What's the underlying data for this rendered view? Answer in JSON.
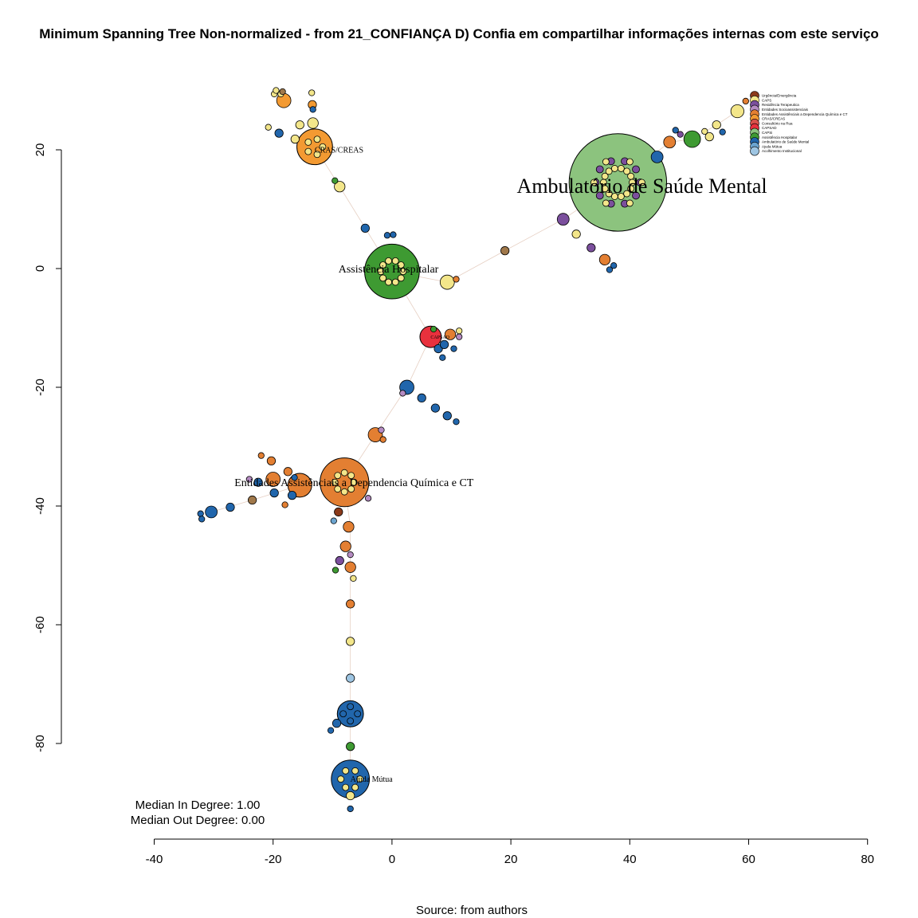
{
  "chart_data": {
    "type": "scatter",
    "subtype": "network-graph",
    "title": "Minimum Spanning Tree Non-normalized - from 21_CONFIANÇA D) Confia em compartilhar informações internas com este serviço",
    "caption": "Source: from authors",
    "xlim": [
      -40,
      80
    ],
    "ylim": [
      -90,
      30
    ],
    "x_ticks": [
      -40,
      -20,
      0,
      20,
      40,
      60,
      80
    ],
    "y_ticks": [
      20,
      0,
      -20,
      -40,
      -60,
      -80
    ],
    "stats": [
      "Median In Degree: 1.00",
      "Median Out Degree: 0.00"
    ],
    "legend_position": "top-right",
    "legend": [
      {
        "label": "Urgência/Emergência",
        "color": "#8B3A1A"
      },
      {
        "label": "CAPS",
        "color": "#F3E68A"
      },
      {
        "label": "Residência Terapeutica",
        "color": "#7B4F9D"
      },
      {
        "label": "Entidades Socioassistenciais",
        "color": "#B58BC2"
      },
      {
        "label": "Entidades Assistênciais a Dependencia Química e CT",
        "color": "#E37F32"
      },
      {
        "label": "CRAS/CREAS",
        "color": "#F39A32"
      },
      {
        "label": "Consultório na Rua",
        "color": "#D9514A"
      },
      {
        "label": "CAPSAD",
        "color": "#E8313D"
      },
      {
        "label": "CAPSi",
        "color": "#8CC37E"
      },
      {
        "label": "Assistência Hospitalar",
        "color": "#3E9A32"
      },
      {
        "label": "Ambulatório de Saúde Mental",
        "color": "#2166AC"
      },
      {
        "label": "Ajuda Mútua",
        "color": "#6BA4CF"
      },
      {
        "label": "Acolhimento Institucional",
        "color": "#9EC5E2"
      }
    ],
    "node_labels": [
      {
        "text": "Ambulatório de Saúde Mental",
        "x": 21,
        "y": 14,
        "size": "large"
      },
      {
        "text": "Assistência Hospitalar",
        "x": -9,
        "y": 0,
        "size": "medium"
      },
      {
        "text": "Entidades Assistênciais a Dependencia Química e CT",
        "x": -26.5,
        "y": -36,
        "size": "medium"
      },
      {
        "text": "CRAS/CREAS",
        "x": -13,
        "y": 20,
        "size": "small"
      },
      {
        "text": "Ajuda Mútua",
        "x": -7,
        "y": -86,
        "size": "small"
      },
      {
        "text": "CAPSAD",
        "x": 6.5,
        "y": -11.5,
        "size": "tiny"
      }
    ],
    "hubs": [
      {
        "x": 38,
        "y": 14.5,
        "r": 8.2,
        "color": "#8CC37E"
      },
      {
        "x": 0,
        "y": -0.5,
        "r": 4.6,
        "color": "#3E9A32"
      },
      {
        "x": -8,
        "y": -36,
        "r": 4.1,
        "color": "#E37F32"
      },
      {
        "x": -13,
        "y": 20.5,
        "r": 3.0,
        "color": "#F39A32"
      },
      {
        "x": -7,
        "y": -86,
        "r": 3.2,
        "color": "#2166AC"
      },
      {
        "x": -7,
        "y": -75,
        "r": 2.2,
        "color": "#2166AC"
      },
      {
        "x": 6.5,
        "y": -11.5,
        "r": 1.8,
        "color": "#E8313D"
      },
      {
        "x": -15.5,
        "y": -36.5,
        "r": 2.0,
        "color": "#E37F32"
      }
    ],
    "nodes": [
      {
        "x": 44.6,
        "y": 18.8,
        "r": 1.0,
        "color": "#2166AC"
      },
      {
        "x": 50.5,
        "y": 21.8,
        "r": 1.4,
        "color": "#3E9A32"
      },
      {
        "x": 46.7,
        "y": 21.3,
        "r": 1.0,
        "color": "#E37F32"
      },
      {
        "x": 47.7,
        "y": 23.3,
        "r": 0.5,
        "color": "#2166AC"
      },
      {
        "x": 48.5,
        "y": 22.6,
        "r": 0.5,
        "color": "#7B4F9D"
      },
      {
        "x": 52.6,
        "y": 23.1,
        "r": 0.5,
        "color": "#F3E68A"
      },
      {
        "x": 53.4,
        "y": 22.2,
        "r": 0.7,
        "color": "#F3E68A"
      },
      {
        "x": 54.6,
        "y": 24.2,
        "r": 0.7,
        "color": "#F3E68A"
      },
      {
        "x": 55.6,
        "y": 23.0,
        "r": 0.5,
        "color": "#2166AC"
      },
      {
        "x": 58.1,
        "y": 26.5,
        "r": 1.1,
        "color": "#F3E68A"
      },
      {
        "x": 59.5,
        "y": 28.2,
        "r": 0.5,
        "color": "#E37F32"
      },
      {
        "x": 28.8,
        "y": 8.3,
        "r": 1.0,
        "color": "#7B4F9D"
      },
      {
        "x": 31.0,
        "y": 5.8,
        "r": 0.7,
        "color": "#F3E68A"
      },
      {
        "x": 33.5,
        "y": 3.5,
        "r": 0.7,
        "color": "#7B4F9D"
      },
      {
        "x": 35.8,
        "y": 1.5,
        "r": 0.9,
        "color": "#E37F32"
      },
      {
        "x": 37.3,
        "y": 0.5,
        "r": 0.5,
        "color": "#2166AC"
      },
      {
        "x": 36.6,
        "y": -0.2,
        "r": 0.5,
        "color": "#2166AC"
      },
      {
        "x": 19.0,
        "y": 3.0,
        "r": 0.7,
        "color": "#A0784A"
      },
      {
        "x": 9.3,
        "y": -2.3,
        "r": 1.2,
        "color": "#F3E68A"
      },
      {
        "x": 10.8,
        "y": -1.8,
        "r": 0.5,
        "color": "#E37F32"
      },
      {
        "x": -4.5,
        "y": 6.8,
        "r": 0.7,
        "color": "#2166AC"
      },
      {
        "x": -0.8,
        "y": 5.6,
        "r": 0.5,
        "color": "#2166AC"
      },
      {
        "x": 0.2,
        "y": 5.7,
        "r": 0.5,
        "color": "#2166AC"
      },
      {
        "x": -8.8,
        "y": 13.8,
        "r": 0.9,
        "color": "#F3E68A"
      },
      {
        "x": -9.6,
        "y": 14.8,
        "r": 0.5,
        "color": "#3E9A32"
      },
      {
        "x": -18.2,
        "y": 28.3,
        "r": 1.2,
        "color": "#F39A32"
      },
      {
        "x": -13.4,
        "y": 27.6,
        "r": 0.7,
        "color": "#F39A32"
      },
      {
        "x": -13.3,
        "y": 24.5,
        "r": 0.9,
        "color": "#F3E68A"
      },
      {
        "x": -15.5,
        "y": 24.2,
        "r": 0.7,
        "color": "#F3E68A"
      },
      {
        "x": -19.0,
        "y": 22.8,
        "r": 0.7,
        "color": "#2166AC"
      },
      {
        "x": -16.3,
        "y": 21.8,
        "r": 0.7,
        "color": "#F3E68A"
      },
      {
        "x": -20.8,
        "y": 23.8,
        "r": 0.5,
        "color": "#F3E68A"
      },
      {
        "x": -19.8,
        "y": 29.4,
        "r": 0.5,
        "color": "#F3E68A"
      },
      {
        "x": -19.5,
        "y": 30.0,
        "r": 0.5,
        "color": "#F3E68A"
      },
      {
        "x": -18.7,
        "y": 29.4,
        "r": 0.5,
        "color": "#F3E68A"
      },
      {
        "x": -18.4,
        "y": 29.8,
        "r": 0.5,
        "color": "#A0784A"
      },
      {
        "x": -13.5,
        "y": 29.6,
        "r": 0.5,
        "color": "#F3E68A"
      },
      {
        "x": -13.3,
        "y": 26.8,
        "r": 0.5,
        "color": "#2166AC"
      },
      {
        "x": 7.8,
        "y": -13.5,
        "r": 0.7,
        "color": "#2166AC"
      },
      {
        "x": 8.8,
        "y": -12.8,
        "r": 0.7,
        "color": "#2166AC"
      },
      {
        "x": 9.8,
        "y": -11.1,
        "r": 0.9,
        "color": "#E37F32"
      },
      {
        "x": 7.0,
        "y": -10.2,
        "r": 0.5,
        "color": "#3E9A32"
      },
      {
        "x": 11.3,
        "y": -10.5,
        "r": 0.5,
        "color": "#F3E68A"
      },
      {
        "x": 11.3,
        "y": -11.5,
        "r": 0.5,
        "color": "#B58BC2"
      },
      {
        "x": 10.4,
        "y": -13.5,
        "r": 0.5,
        "color": "#2166AC"
      },
      {
        "x": 8.5,
        "y": -15.0,
        "r": 0.5,
        "color": "#2166AC"
      },
      {
        "x": 2.5,
        "y": -20.0,
        "r": 1.2,
        "color": "#2166AC"
      },
      {
        "x": 1.8,
        "y": -21.0,
        "r": 0.5,
        "color": "#B58BC2"
      },
      {
        "x": 5.0,
        "y": -21.8,
        "r": 0.7,
        "color": "#2166AC"
      },
      {
        "x": 7.3,
        "y": -23.5,
        "r": 0.7,
        "color": "#2166AC"
      },
      {
        "x": 9.3,
        "y": -24.8,
        "r": 0.7,
        "color": "#2166AC"
      },
      {
        "x": 10.8,
        "y": -25.8,
        "r": 0.5,
        "color": "#2166AC"
      },
      {
        "x": -2.8,
        "y": -28.0,
        "r": 1.2,
        "color": "#E37F32"
      },
      {
        "x": -1.8,
        "y": -27.2,
        "r": 0.5,
        "color": "#B58BC2"
      },
      {
        "x": -1.5,
        "y": -28.8,
        "r": 0.5,
        "color": "#E37F32"
      },
      {
        "x": -22.0,
        "y": -31.5,
        "r": 0.5,
        "color": "#E37F32"
      },
      {
        "x": -20.3,
        "y": -32.4,
        "r": 0.7,
        "color": "#E37F32"
      },
      {
        "x": -17.5,
        "y": -34.2,
        "r": 0.7,
        "color": "#E37F32"
      },
      {
        "x": -20.0,
        "y": -35.5,
        "r": 1.2,
        "color": "#E37F32"
      },
      {
        "x": -22.5,
        "y": -36.0,
        "r": 0.7,
        "color": "#2166AC"
      },
      {
        "x": -24.0,
        "y": -35.5,
        "r": 0.5,
        "color": "#B58BC2"
      },
      {
        "x": -19.8,
        "y": -37.8,
        "r": 0.7,
        "color": "#2166AC"
      },
      {
        "x": -16.8,
        "y": -38.2,
        "r": 0.7,
        "color": "#2166AC"
      },
      {
        "x": -16.4,
        "y": -35.2,
        "r": 0.5,
        "color": "#2166AC"
      },
      {
        "x": -18.0,
        "y": -39.8,
        "r": 0.5,
        "color": "#E37F32"
      },
      {
        "x": -23.5,
        "y": -39.0,
        "r": 0.7,
        "color": "#A0784A"
      },
      {
        "x": -27.2,
        "y": -40.2,
        "r": 0.7,
        "color": "#2166AC"
      },
      {
        "x": -30.4,
        "y": -41.0,
        "r": 1.0,
        "color": "#2166AC"
      },
      {
        "x": -32.2,
        "y": -41.3,
        "r": 0.5,
        "color": "#2166AC"
      },
      {
        "x": -32.0,
        "y": -42.2,
        "r": 0.5,
        "color": "#2166AC"
      },
      {
        "x": -9.0,
        "y": -41.0,
        "r": 0.7,
        "color": "#8B3A1A"
      },
      {
        "x": -9.8,
        "y": -42.5,
        "r": 0.5,
        "color": "#6BA4CF"
      },
      {
        "x": -7.3,
        "y": -43.5,
        "r": 0.9,
        "color": "#E37F32"
      },
      {
        "x": -4.0,
        "y": -38.7,
        "r": 0.5,
        "color": "#B58BC2"
      },
      {
        "x": -7.8,
        "y": -46.8,
        "r": 0.9,
        "color": "#E37F32"
      },
      {
        "x": -7.0,
        "y": -48.2,
        "r": 0.5,
        "color": "#B58BC2"
      },
      {
        "x": -8.8,
        "y": -49.2,
        "r": 0.7,
        "color": "#7B4F9D"
      },
      {
        "x": -7.0,
        "y": -50.3,
        "r": 0.9,
        "color": "#E37F32"
      },
      {
        "x": -9.5,
        "y": -50.8,
        "r": 0.5,
        "color": "#3E9A32"
      },
      {
        "x": -6.5,
        "y": -52.2,
        "r": 0.5,
        "color": "#F3E68A"
      },
      {
        "x": -7.0,
        "y": -56.5,
        "r": 0.7,
        "color": "#E37F32"
      },
      {
        "x": -7.0,
        "y": -62.8,
        "r": 0.7,
        "color": "#F3E68A"
      },
      {
        "x": -7.0,
        "y": -69.0,
        "r": 0.7,
        "color": "#9EC5E2"
      },
      {
        "x": -9.3,
        "y": -76.6,
        "r": 0.7,
        "color": "#2166AC"
      },
      {
        "x": -10.3,
        "y": -77.8,
        "r": 0.5,
        "color": "#2166AC"
      },
      {
        "x": -7.0,
        "y": -80.5,
        "r": 0.7,
        "color": "#3E9A32"
      },
      {
        "x": -7.0,
        "y": -88.8,
        "r": 0.7,
        "color": "#F3E68A"
      },
      {
        "x": -7.0,
        "y": -91.0,
        "r": 0.5,
        "color": "#2166AC"
      }
    ]
  }
}
